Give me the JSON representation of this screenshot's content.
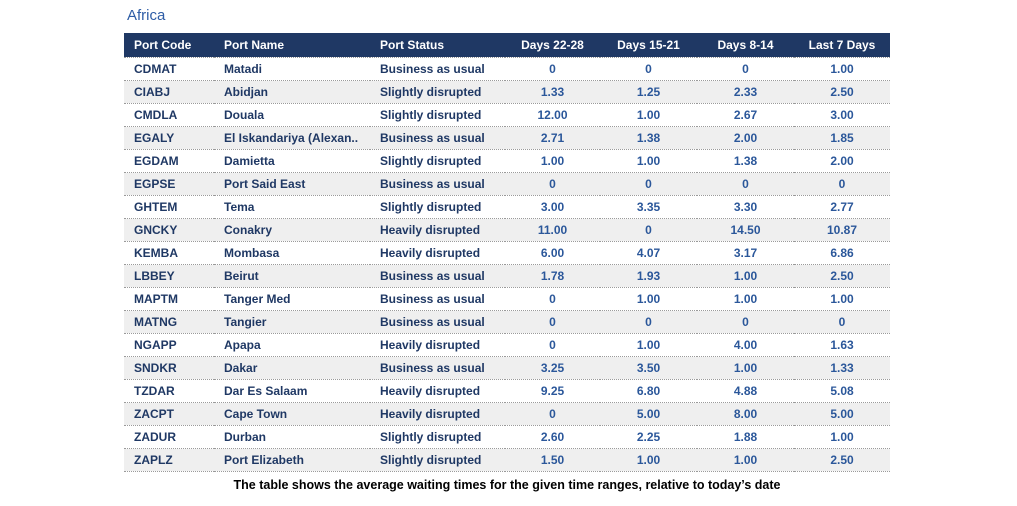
{
  "page": {
    "title": "Africa",
    "caption": "The table shows the average waiting times for the given time ranges, relative to today’s date"
  },
  "colors": {
    "header_bg": "#1F3864",
    "header_text": "#FFFFFF",
    "body_text": "#1F3864",
    "value_text": "#2B579A",
    "row_alt_bg": "#EFEFEF",
    "title_text": "#2E5DA6",
    "row_divider": "#9A9A9A"
  },
  "chart_data": {
    "type": "table",
    "title": "Africa",
    "caption": "The table shows the average waiting times for the given time ranges, relative to today’s date",
    "columns": [
      "Port Code",
      "Port Name",
      "Port Status",
      "Days 22-28",
      "Days 15-21",
      "Days 8-14",
      "Last 7 Days"
    ],
    "column_types": [
      "text",
      "text",
      "text",
      "number",
      "number",
      "number",
      "number"
    ],
    "layout": {
      "striped": true,
      "header_position": "top",
      "numeric_alignment": "center"
    },
    "rows": [
      [
        "CDMAT",
        "Matadi",
        "Business as usual",
        "0",
        "0",
        "0",
        "1.00"
      ],
      [
        "CIABJ",
        "Abidjan",
        "Slightly disrupted",
        "1.33",
        "1.25",
        "2.33",
        "2.50"
      ],
      [
        "CMDLA",
        "Douala",
        "Slightly disrupted",
        "12.00",
        "1.00",
        "2.67",
        "3.00"
      ],
      [
        "EGALY",
        "El Iskandariya (Alexan..",
        "Business as usual",
        "2.71",
        "1.38",
        "2.00",
        "1.85"
      ],
      [
        "EGDAM",
        "Damietta",
        "Slightly disrupted",
        "1.00",
        "1.00",
        "1.38",
        "2.00"
      ],
      [
        "EGPSE",
        "Port Said East",
        "Business as usual",
        "0",
        "0",
        "0",
        "0"
      ],
      [
        "GHTEM",
        "Tema",
        "Slightly disrupted",
        "3.00",
        "3.35",
        "3.30",
        "2.77"
      ],
      [
        "GNCKY",
        "Conakry",
        "Heavily disrupted",
        "11.00",
        "0",
        "14.50",
        "10.87"
      ],
      [
        "KEMBA",
        "Mombasa",
        "Heavily disrupted",
        "6.00",
        "4.07",
        "3.17",
        "6.86"
      ],
      [
        "LBBEY",
        "Beirut",
        "Business as usual",
        "1.78",
        "1.93",
        "1.00",
        "2.50"
      ],
      [
        "MAPTM",
        "Tanger Med",
        "Business as usual",
        "0",
        "1.00",
        "1.00",
        "1.00"
      ],
      [
        "MATNG",
        "Tangier",
        "Business as usual",
        "0",
        "0",
        "0",
        "0"
      ],
      [
        "NGAPP",
        "Apapa",
        "Heavily disrupted",
        "0",
        "1.00",
        "4.00",
        "1.63"
      ],
      [
        "SNDKR",
        "Dakar",
        "Business as usual",
        "3.25",
        "3.50",
        "1.00",
        "1.33"
      ],
      [
        "TZDAR",
        "Dar Es Salaam",
        "Heavily disrupted",
        "9.25",
        "6.80",
        "4.88",
        "5.08"
      ],
      [
        "ZACPT",
        "Cape Town",
        "Heavily disrupted",
        "0",
        "5.00",
        "8.00",
        "5.00"
      ],
      [
        "ZADUR",
        "Durban",
        "Slightly disrupted",
        "2.60",
        "2.25",
        "1.88",
        "1.00"
      ],
      [
        "ZAPLZ",
        "Port Elizabeth",
        "Slightly disrupted",
        "1.50",
        "1.00",
        "1.00",
        "2.50"
      ]
    ]
  }
}
